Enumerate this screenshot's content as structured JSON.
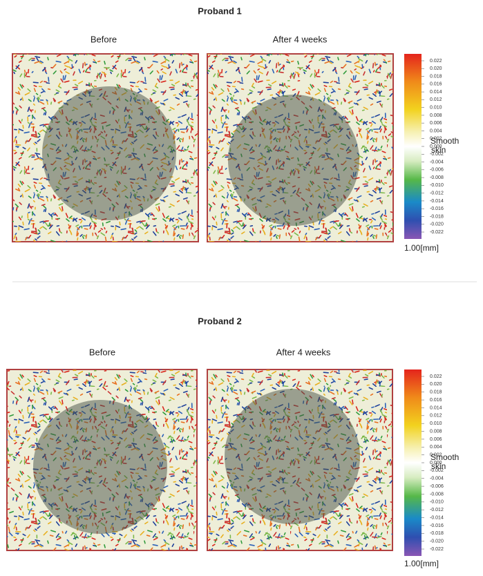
{
  "panels": [
    {
      "title": "Proband 1",
      "before": "Before",
      "after": "After 4 weeks"
    },
    {
      "title": "Proband 2",
      "before": "Before",
      "after": "After 4 weeks"
    }
  ],
  "colorbar": {
    "labels": [
      "0.022",
      "0.020",
      "0.018",
      "0.016",
      "0.014",
      "0.012",
      "0.010",
      "0.008",
      "0.006",
      "0.004",
      "0.002",
      "0.000",
      "-0.002",
      "-0.004",
      "-0.006",
      "-0.008",
      "-0.010",
      "-0.012",
      "-0.014",
      "-0.016",
      "-0.018",
      "-0.020",
      "-0.022"
    ],
    "annotation": "Smooth skin",
    "scale": "1.00[mm]"
  }
}
